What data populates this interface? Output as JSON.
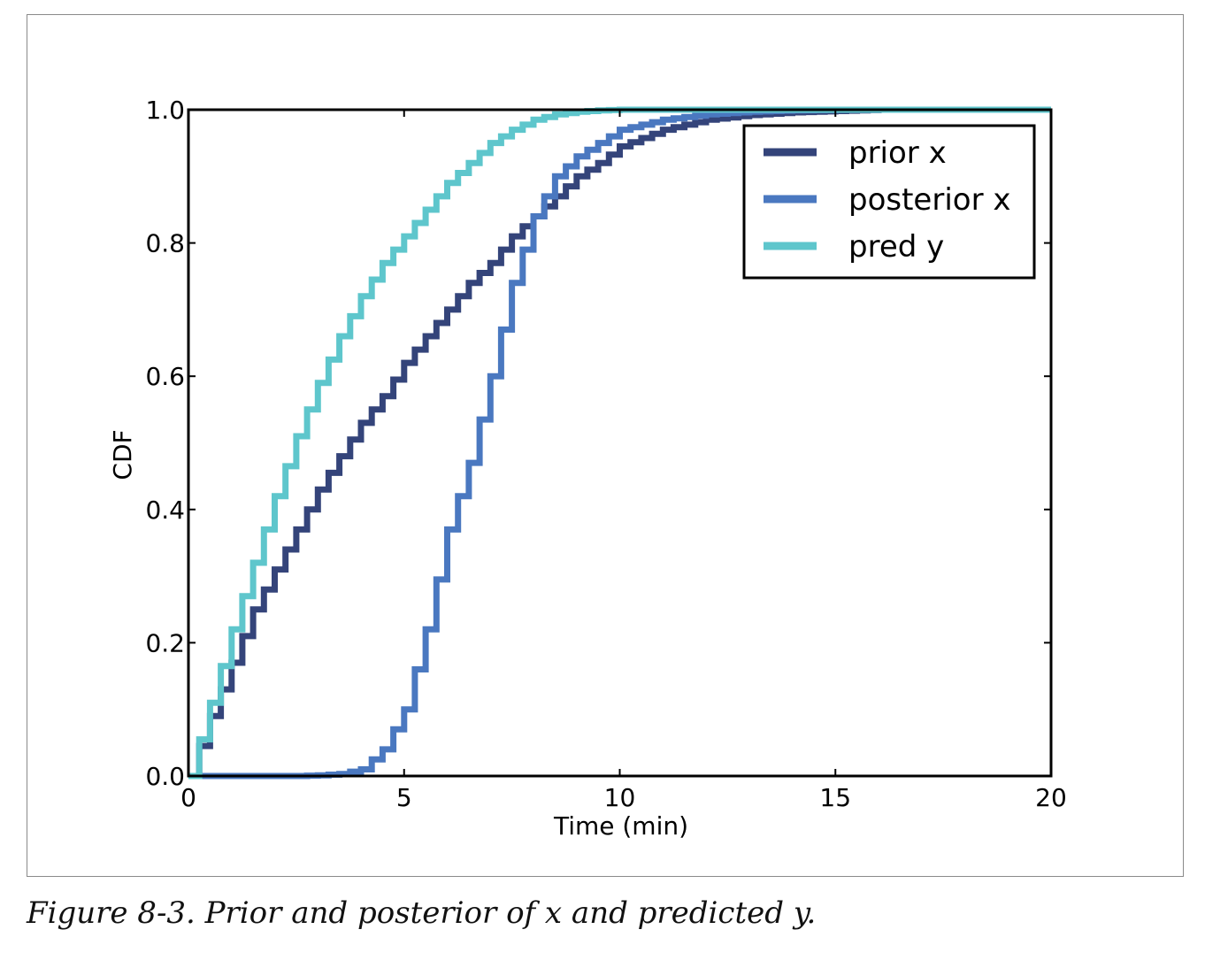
{
  "caption": "Figure 8-3. Prior and posterior of x and predicted y.",
  "chart_data": {
    "type": "line",
    "drawstyle": "steps",
    "title": "",
    "xlabel": "Time (min)",
    "ylabel": "CDF",
    "xlim": [
      0,
      20
    ],
    "ylim": [
      0,
      1
    ],
    "xticks": [
      0,
      5,
      10,
      15,
      20
    ],
    "xtick_labels": [
      "0",
      "5",
      "10",
      "15",
      "20"
    ],
    "yticks": [
      0,
      0.2,
      0.4,
      0.6,
      0.8,
      1.0
    ],
    "ytick_labels": [
      "0.0",
      "0.2",
      "0.4",
      "0.6",
      "0.8",
      "1.0"
    ],
    "grid": false,
    "legend_position": "top-right",
    "x": [
      0,
      0.5,
      1,
      1.5,
      2,
      2.5,
      3,
      3.5,
      4,
      4.5,
      5,
      5.5,
      6,
      6.5,
      7,
      7.5,
      8,
      8.5,
      9,
      9.5,
      10,
      11,
      12,
      13,
      14,
      15,
      16,
      17,
      18,
      19,
      20
    ],
    "series": [
      {
        "name": "prior x",
        "color": "#34447a",
        "values": [
          0.0,
          0.09,
          0.17,
          0.25,
          0.31,
          0.37,
          0.43,
          0.48,
          0.53,
          0.57,
          0.62,
          0.66,
          0.7,
          0.74,
          0.77,
          0.81,
          0.84,
          0.87,
          0.9,
          0.92,
          0.945,
          0.97,
          0.985,
          0.992,
          0.996,
          0.998,
          1.0,
          1.0,
          1.0,
          1.0,
          1.0
        ]
      },
      {
        "name": "posterior x",
        "color": "#4a78c0",
        "values": [
          0.0,
          0.0,
          0.0,
          0.0,
          0.0,
          0.0,
          0.001,
          0.003,
          0.01,
          0.04,
          0.1,
          0.22,
          0.37,
          0.47,
          0.6,
          0.74,
          0.84,
          0.9,
          0.93,
          0.95,
          0.97,
          0.985,
          0.993,
          0.997,
          0.999,
          1.0,
          1.0,
          1.0,
          1.0,
          1.0,
          1.0
        ]
      },
      {
        "name": "pred y",
        "color": "#5ec6cc",
        "values": [
          0.0,
          0.11,
          0.22,
          0.32,
          0.42,
          0.51,
          0.59,
          0.66,
          0.72,
          0.77,
          0.81,
          0.85,
          0.89,
          0.92,
          0.95,
          0.97,
          0.985,
          0.993,
          0.997,
          0.999,
          1.0,
          1.0,
          1.0,
          1.0,
          1.0,
          1.0,
          1.0,
          1.0,
          1.0,
          1.0,
          1.0
        ]
      }
    ]
  }
}
